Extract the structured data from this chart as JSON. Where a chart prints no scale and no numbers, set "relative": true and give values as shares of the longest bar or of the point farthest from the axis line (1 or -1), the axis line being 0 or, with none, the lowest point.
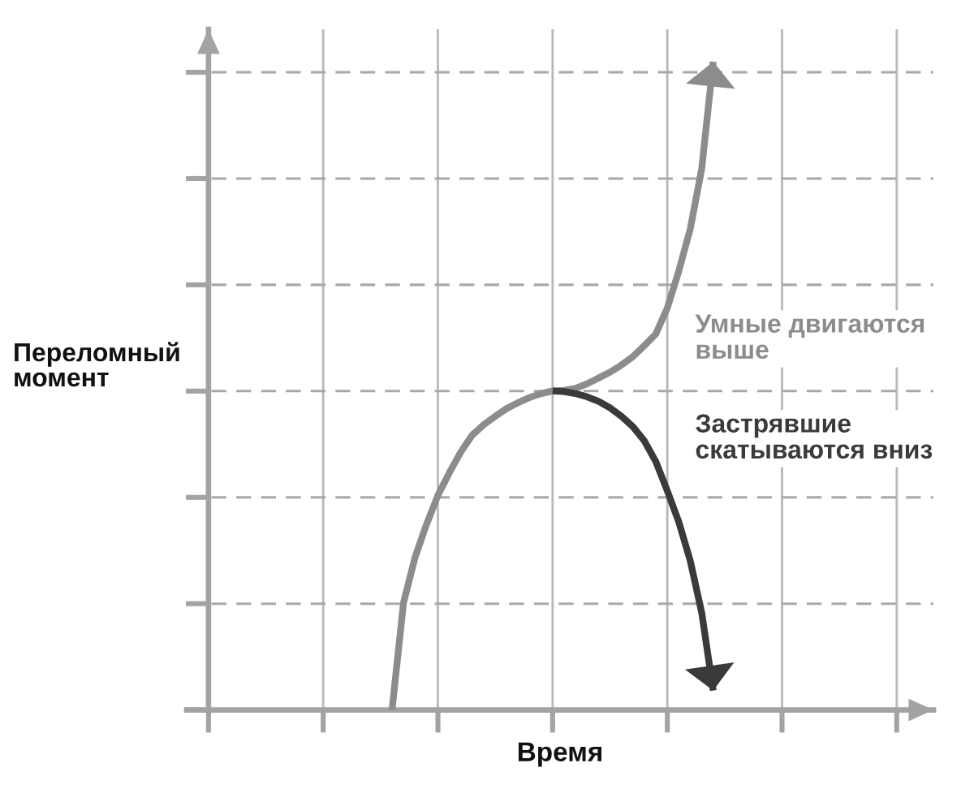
{
  "chart_data": {
    "type": "line",
    "relative": true,
    "xlabel": "Время",
    "ylabel": "Переломный\nмомент",
    "grid": true,
    "categories": [
      null,
      null,
      null,
      null,
      null,
      null,
      null,
      null,
      null,
      null,
      null,
      null,
      null,
      null,
      null,
      null,
      null,
      null,
      null,
      null,
      null,
      null,
      null,
      null,
      null,
      null,
      null,
      null,
      null,
      null,
      null,
      null,
      null,
      null,
      null,
      null,
      null,
      null,
      null,
      null,
      null,
      null,
      null,
      null,
      null,
      null,
      null,
      null,
      null,
      null,
      null,
      null,
      null,
      null,
      null,
      null,
      null,
      null,
      null,
      null,
      null
    ],
    "series": [
      {
        "name": "Умные двигаются\nвыше",
        "color": "#8c8c8c",
        "values": [
          null,
          null,
          null,
          null,
          null,
          null,
          null,
          null,
          null,
          null,
          null,
          null,
          null,
          null,
          null,
          null,
          0,
          0.165,
          0.235,
          0.286,
          0.331,
          0.366,
          0.398,
          0.424,
          0.44,
          0.453,
          0.465,
          0.474,
          0.482,
          0.488,
          0.492,
          0.493,
          0.496,
          0.503,
          0.512,
          0.521,
          0.532,
          0.545,
          0.562,
          0.58,
          0.62,
          0.677,
          0.742,
          0.835,
          1,
          null,
          null,
          null,
          null,
          null,
          null,
          null,
          null,
          null,
          null,
          null,
          null,
          null,
          null,
          null,
          null
        ]
      },
      {
        "name": "Застрявшие\nскатываются вниз",
        "color": "#3a3a3a",
        "values": [
          null,
          null,
          null,
          null,
          null,
          null,
          null,
          null,
          null,
          null,
          null,
          null,
          null,
          null,
          null,
          null,
          null,
          null,
          null,
          null,
          null,
          null,
          null,
          null,
          null,
          null,
          null,
          null,
          null,
          null,
          0.492,
          0.491,
          0.488,
          0.483,
          0.476,
          0.466,
          0.453,
          0.437,
          0.415,
          0.383,
          0.338,
          0.29,
          0.23,
          0.15,
          0.03,
          null,
          null,
          null,
          null,
          null,
          null,
          null,
          null,
          null,
          null,
          null,
          null,
          null,
          null,
          null,
          null
        ]
      }
    ]
  }
}
